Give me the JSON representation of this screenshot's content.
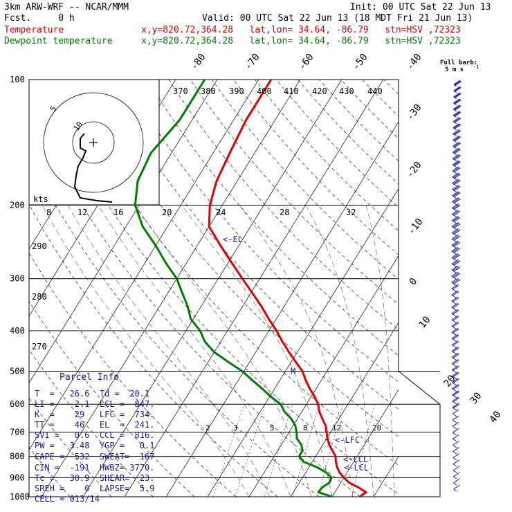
{
  "header": {
    "model": "3km ARW-WRF -- NCAR/MMM",
    "init": "Init: 00 UTC Sat 22 Jun 13",
    "fcst": "Fcst.     0 h",
    "valid": "Valid: 00 UTC Sat 22 Jun 13 (18 MDT Fri 21 Jun 13)",
    "temp_label": "Temperature",
    "dew_label": "Dewpoint temperature",
    "coord_text": "x,y=820.72,364.28   lat,lon= 34.64, -86.79   stn=HSV ,72323"
  },
  "barb_legend": {
    "title": "Full barb:",
    "value": "5 m s",
    "exp": "-1"
  },
  "hodograph": {
    "unit": "kts",
    "ring_labels": [
      "5",
      "10"
    ]
  },
  "parcel": {
    "title": "Parcel Info",
    "rows": [
      "T  =   26.6  Td =  20.1",
      "LI =   -2.1  LCL =  847.",
      "K  =    29   LFC =  734.",
      "TT =    46   EL  =  241.",
      "SVI =   0.6  CCL =  816.",
      "PW =   3.48  YGP =   0.1",
      "CAPE =  532  SWEAT=  167",
      "CIN =  -191  HWBZ= 3770.",
      "Tc =   30.9  SHEAR=  23.",
      "SREH =    0  LAPSE=  5.9",
      "CELL = 013/14"
    ]
  },
  "chart_data": {
    "type": "line",
    "title": "",
    "ylabel": "",
    "xlabel": "",
    "y_scale": "log-pressure",
    "ylim": [
      1000,
      100
    ],
    "pressure_levels": [
      "100",
      "200",
      "300",
      "400",
      "500",
      "600",
      "700",
      "800",
      "900",
      "1000"
    ],
    "isotherm_labels": [
      "-80",
      "-70",
      "-60",
      "-50",
      "-40",
      "-30",
      "-20",
      "-10",
      "0",
      "10",
      "20",
      "30",
      "40"
    ],
    "theta_labels": [
      "370",
      "380",
      "390",
      "400",
      "410",
      "420",
      "430",
      "440"
    ],
    "mixing_top_labels": [
      "8",
      "12",
      "16",
      "20",
      "24",
      "28",
      "32"
    ],
    "mixing_bottom_labels": [
      "2",
      "3",
      "5",
      "8",
      "12",
      "20"
    ],
    "left_labels": [
      "290",
      "280",
      "270"
    ],
    "markers": [
      "<-EL",
      "<-LFC",
      "<-CCL",
      "<-LCL",
      "M"
    ],
    "series": [
      {
        "name": "Temperature",
        "color": "#e00000",
        "pressure": [
          1000,
          975,
          950,
          925,
          900,
          875,
          850,
          825,
          800,
          775,
          750,
          725,
          700,
          675,
          650,
          625,
          600,
          575,
          550,
          525,
          500,
          475,
          450,
          425,
          400,
          375,
          350,
          325,
          300,
          275,
          250,
          225,
          200,
          175,
          150,
          125,
          100
        ],
        "temp": [
          26.6,
          27.5,
          25.0,
          22.0,
          20.0,
          18.2,
          16.8,
          15.7,
          14.8,
          13.2,
          11.5,
          10.2,
          9.0,
          7.8,
          6.0,
          4.2,
          2.8,
          0.8,
          -1.6,
          -3.8,
          -5.9,
          -8.9,
          -12.0,
          -15.1,
          -18.2,
          -21.8,
          -25.4,
          -29.6,
          -34.2,
          -39.1,
          -44.4,
          -50.0,
          -53.0,
          -55.0,
          -56.0,
          -57.0,
          -57.0
        ]
      },
      {
        "name": "Dewpoint temperature",
        "color": "#007a00",
        "pressure": [
          1000,
          975,
          950,
          925,
          900,
          875,
          850,
          825,
          800,
          775,
          750,
          725,
          700,
          675,
          650,
          625,
          600,
          575,
          550,
          525,
          500,
          475,
          450,
          425,
          400,
          375,
          350,
          325,
          300,
          275,
          250,
          225,
          200,
          175,
          150,
          125,
          100
        ],
        "temp": [
          20.1,
          16.0,
          16.2,
          17.2,
          17.0,
          15.0,
          12.0,
          8.0,
          6.0,
          6.0,
          4.8,
          2.8,
          1.8,
          0.5,
          -1.5,
          -4.2,
          -6.2,
          -9.8,
          -13.1,
          -16.7,
          -20.4,
          -25.2,
          -30.0,
          -33.8,
          -36.6,
          -40.6,
          -43.2,
          -46.5,
          -50.0,
          -55.0,
          -60.0,
          -66.0,
          -71.0,
          -74.0,
          -75.0,
          -73.0,
          -73.0
        ]
      }
    ]
  }
}
